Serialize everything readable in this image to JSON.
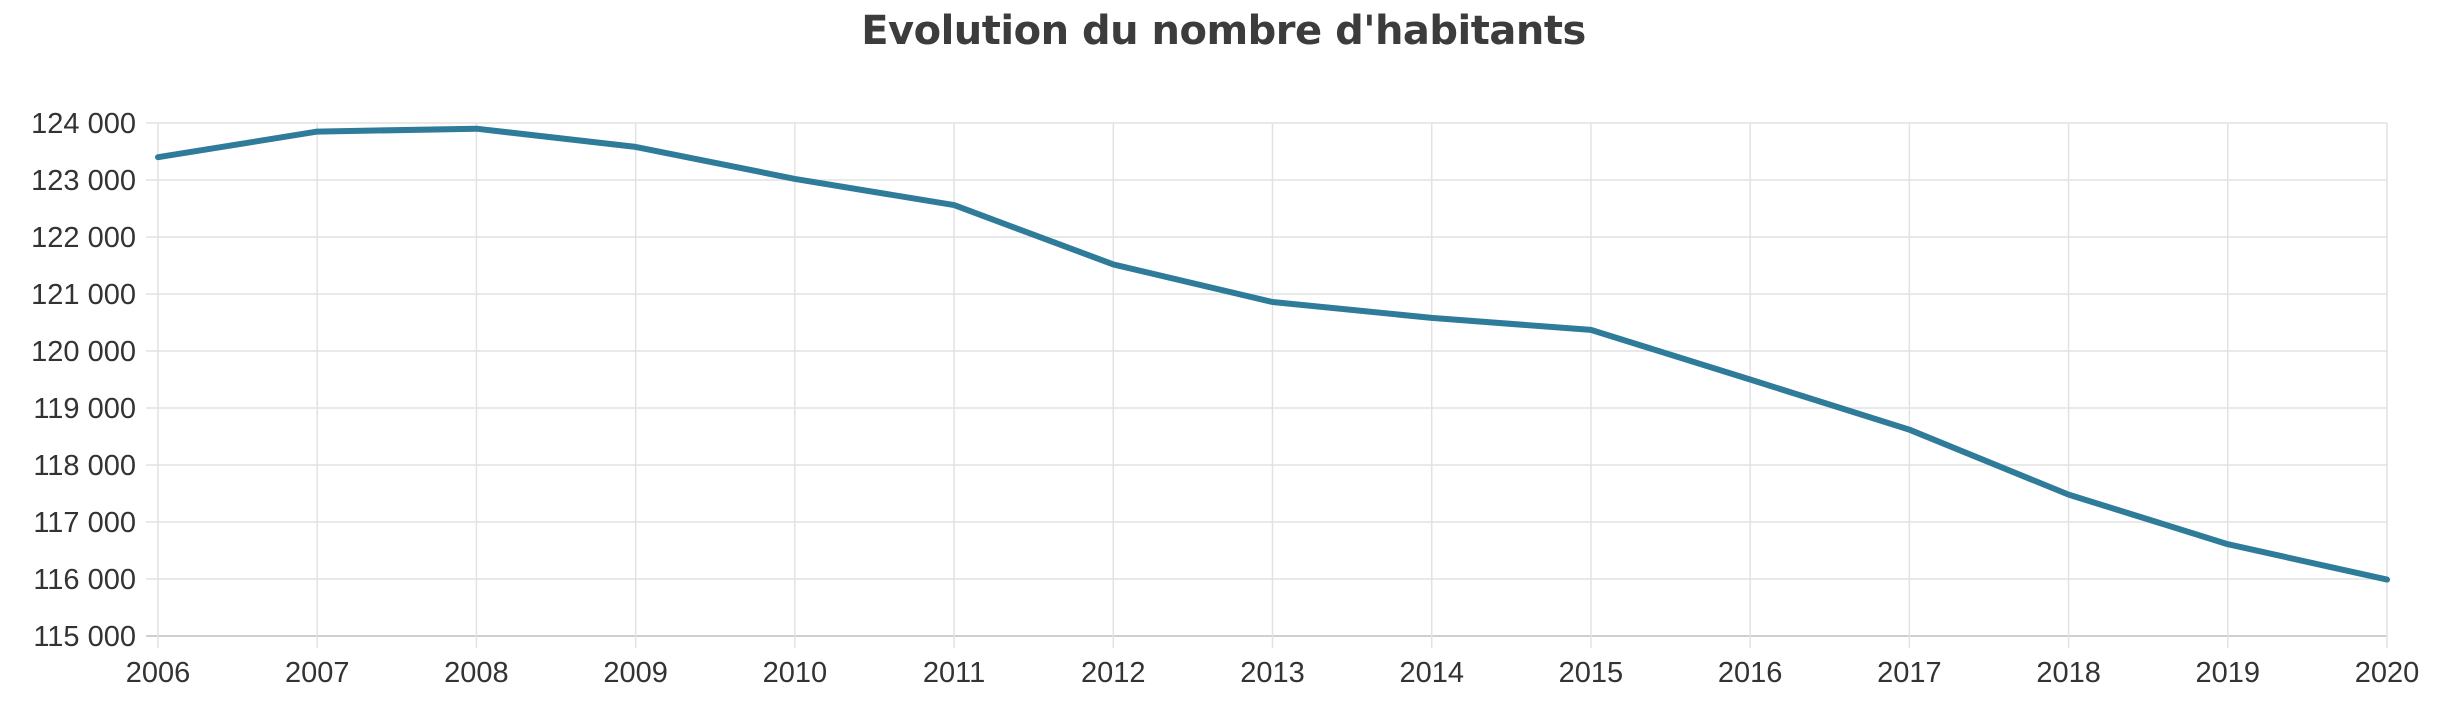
{
  "chart_data": {
    "type": "line",
    "title": "Evolution du nombre d'habitants",
    "xlabel": "",
    "ylabel": "",
    "x": [
      "2006",
      "2007",
      "2008",
      "2009",
      "2010",
      "2011",
      "2012",
      "2013",
      "2014",
      "2015",
      "2016",
      "2017",
      "2018",
      "2019",
      "2020"
    ],
    "series": [
      {
        "color": "#2e7b9a",
        "values": [
          123400,
          123850,
          123900,
          123580,
          123020,
          122560,
          121520,
          120860,
          120580,
          120370,
          119500,
          118620,
          117480,
          116610,
          115990
        ]
      }
    ],
    "ylim": [
      115000,
      124000
    ],
    "yticks": [
      115000,
      116000,
      117000,
      118000,
      119000,
      120000,
      121000,
      122000,
      123000,
      124000
    ],
    "ytick_labels": [
      "115 000",
      "116 000",
      "117 000",
      "118 000",
      "119 000",
      "120 000",
      "121 000",
      "122 000",
      "123 000",
      "124 000"
    ],
    "grid": true
  }
}
